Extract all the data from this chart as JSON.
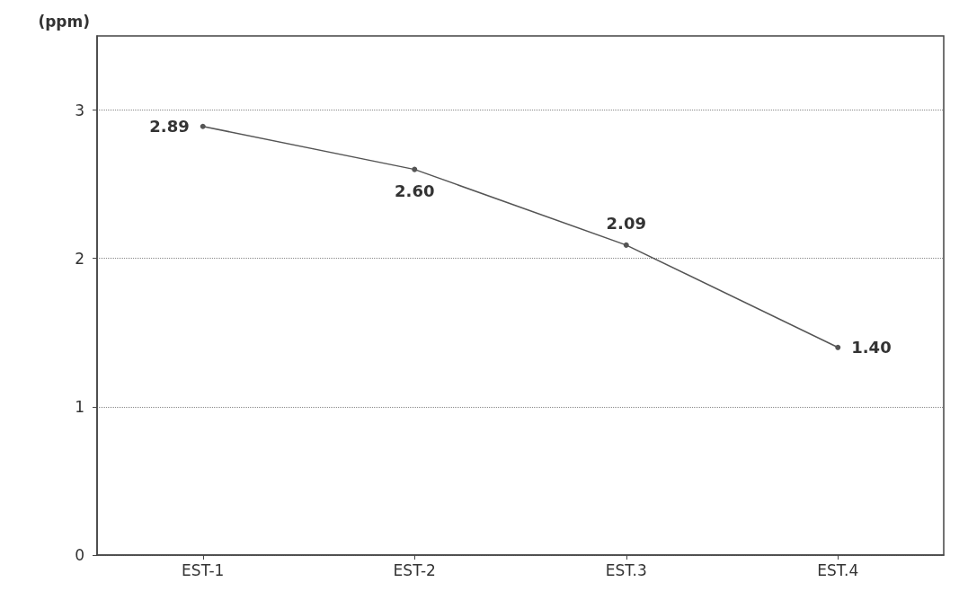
{
  "chart_data": {
    "type": "line",
    "ylabel": "(ppm)",
    "categories": [
      "EST-1",
      "EST-2",
      "EST.3",
      "EST.4"
    ],
    "values": [
      2.89,
      2.6,
      2.09,
      1.4
    ],
    "value_labels": [
      "2.89",
      "2.60",
      "2.09",
      "1.40"
    ],
    "color": "#555555",
    "ylim": [
      0,
      3.5
    ],
    "yticks": [
      0,
      1,
      2,
      3
    ],
    "grid": "y",
    "marker": "circle",
    "line_style": "solid"
  }
}
